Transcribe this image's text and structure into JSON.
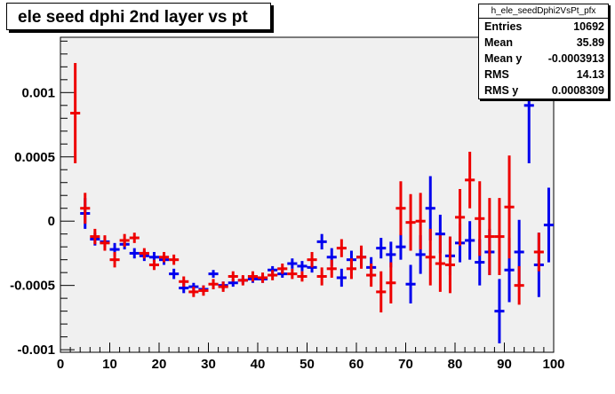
{
  "chart_data": {
    "type": "scatter",
    "title": "ele seed dphi 2nd layer vs pt",
    "xlim": [
      0,
      100
    ],
    "ylim": [
      -0.00102,
      0.00143
    ],
    "x_ticks": [
      "0",
      "10",
      "20",
      "30",
      "40",
      "50",
      "60",
      "70",
      "80",
      "90",
      "100"
    ],
    "y_ticks": [
      {
        "value": 0.001,
        "label": "0.001"
      },
      {
        "value": 0.0005,
        "label": "0.0005"
      },
      {
        "value": 0,
        "label": "0"
      },
      {
        "value": -0.0005,
        "label": "-0.0005"
      },
      {
        "value": -0.001,
        "label": "-0.001"
      }
    ],
    "grid": false,
    "x_bin_half_width": 1,
    "stats": {
      "name": "h_ele_seedDphi2VsPt_pfx",
      "rows": [
        {
          "label": "Entries",
          "value": "10692"
        },
        {
          "label": "Mean",
          "value": "35.89"
        },
        {
          "label": "Mean y",
          "value": "-0.0003913"
        },
        {
          "label": "RMS",
          "value": "14.13"
        },
        {
          "label": "RMS y",
          "value": "0.0008309"
        }
      ]
    },
    "series": [
      {
        "color": "#0000ee",
        "points": [
          {
            "x": 5,
            "y": 6e-05,
            "err": 0.00012
          },
          {
            "x": 7,
            "y": -0.00014,
            "err": 5e-05
          },
          {
            "x": 9,
            "y": -0.00016,
            "err": 4e-05
          },
          {
            "x": 11,
            "y": -0.00022,
            "err": 5e-05
          },
          {
            "x": 13,
            "y": -0.00018,
            "err": 4e-05
          },
          {
            "x": 15,
            "y": -0.00025,
            "err": 4e-05
          },
          {
            "x": 17,
            "y": -0.00027,
            "err": 4e-05
          },
          {
            "x": 19,
            "y": -0.00028,
            "err": 4e-05
          },
          {
            "x": 21,
            "y": -0.0003,
            "err": 4e-05
          },
          {
            "x": 23,
            "y": -0.00041,
            "err": 4e-05
          },
          {
            "x": 25,
            "y": -0.00052,
            "err": 4e-05
          },
          {
            "x": 27,
            "y": -0.00051,
            "err": 3e-05
          },
          {
            "x": 29,
            "y": -0.00053,
            "err": 3e-05
          },
          {
            "x": 31,
            "y": -0.00041,
            "err": 3e-05
          },
          {
            "x": 33,
            "y": -0.0005,
            "err": 3e-05
          },
          {
            "x": 35,
            "y": -0.00048,
            "err": 3e-05
          },
          {
            "x": 37,
            "y": -0.00046,
            "err": 3e-05
          },
          {
            "x": 39,
            "y": -0.00045,
            "err": 3e-05
          },
          {
            "x": 41,
            "y": -0.00045,
            "err": 3e-05
          },
          {
            "x": 43,
            "y": -0.00038,
            "err": 3e-05
          },
          {
            "x": 45,
            "y": -0.00041,
            "err": 3e-05
          },
          {
            "x": 47,
            "y": -0.00033,
            "err": 4e-05
          },
          {
            "x": 49,
            "y": -0.00035,
            "err": 4e-05
          },
          {
            "x": 51,
            "y": -0.00036,
            "err": 4e-05
          },
          {
            "x": 53,
            "y": -0.00016,
            "err": 6e-05
          },
          {
            "x": 55,
            "y": -0.00028,
            "err": 7e-05
          },
          {
            "x": 57,
            "y": -0.00044,
            "err": 7e-05
          },
          {
            "x": 59,
            "y": -0.0003,
            "err": 7e-05
          },
          {
            "x": 61,
            "y": -0.00028,
            "err": 7e-05
          },
          {
            "x": 63,
            "y": -0.00036,
            "err": 8e-05
          },
          {
            "x": 65,
            "y": -0.00021,
            "err": 8e-05
          },
          {
            "x": 67,
            "y": -0.00026,
            "err": 0.0001
          },
          {
            "x": 69,
            "y": -0.0002,
            "err": 0.0001
          },
          {
            "x": 71,
            "y": -0.00049,
            "err": 0.00015
          },
          {
            "x": 73,
            "y": -0.00026,
            "err": 0.00015
          },
          {
            "x": 75,
            "y": 0.0001,
            "err": 0.00025
          },
          {
            "x": 77,
            "y": -0.0001,
            "err": 0.00015
          },
          {
            "x": 79,
            "y": -0.00027,
            "err": 0.00015
          },
          {
            "x": 81,
            "y": -0.00017,
            "err": 0.00015
          },
          {
            "x": 83,
            "y": -0.00015,
            "err": 0.00015
          },
          {
            "x": 85,
            "y": -0.00032,
            "err": 0.00018
          },
          {
            "x": 87,
            "y": -0.00024,
            "err": 0.00018
          },
          {
            "x": 89,
            "y": -0.0007,
            "err": 0.00025
          },
          {
            "x": 91,
            "y": -0.00038,
            "err": 0.00025
          },
          {
            "x": 93,
            "y": -0.00024,
            "err": 0.00025
          },
          {
            "x": 95,
            "y": 0.0009,
            "err": 0.00045
          },
          {
            "x": 97,
            "y": -0.00034,
            "err": 0.00025
          },
          {
            "x": 99,
            "y": -3e-05,
            "err": 0.00029
          }
        ]
      },
      {
        "color": "#ee0000",
        "points": [
          {
            "x": 3,
            "y": 0.00084,
            "err": 0.00039
          },
          {
            "x": 5,
            "y": 0.0001,
            "err": 0.00012
          },
          {
            "x": 7,
            "y": -0.00012,
            "err": 6e-05
          },
          {
            "x": 9,
            "y": -0.00017,
            "err": 6e-05
          },
          {
            "x": 11,
            "y": -0.0003,
            "err": 6e-05
          },
          {
            "x": 13,
            "y": -0.00015,
            "err": 5e-05
          },
          {
            "x": 15,
            "y": -0.00013,
            "err": 4e-05
          },
          {
            "x": 17,
            "y": -0.00025,
            "err": 4e-05
          },
          {
            "x": 19,
            "y": -0.00034,
            "err": 4e-05
          },
          {
            "x": 21,
            "y": -0.00028,
            "err": 4e-05
          },
          {
            "x": 23,
            "y": -0.0003,
            "err": 4e-05
          },
          {
            "x": 25,
            "y": -0.00047,
            "err": 4e-05
          },
          {
            "x": 27,
            "y": -0.00055,
            "err": 4e-05
          },
          {
            "x": 29,
            "y": -0.00054,
            "err": 4e-05
          },
          {
            "x": 31,
            "y": -0.00049,
            "err": 4e-05
          },
          {
            "x": 33,
            "y": -0.00051,
            "err": 4e-05
          },
          {
            "x": 35,
            "y": -0.00043,
            "err": 4e-05
          },
          {
            "x": 37,
            "y": -0.00046,
            "err": 4e-05
          },
          {
            "x": 39,
            "y": -0.00043,
            "err": 4e-05
          },
          {
            "x": 41,
            "y": -0.00044,
            "err": 4e-05
          },
          {
            "x": 43,
            "y": -0.00042,
            "err": 4e-05
          },
          {
            "x": 45,
            "y": -0.00037,
            "err": 4e-05
          },
          {
            "x": 47,
            "y": -0.00041,
            "err": 4e-05
          },
          {
            "x": 49,
            "y": -0.00043,
            "err": 4e-05
          },
          {
            "x": 51,
            "y": -0.0003,
            "err": 6e-05
          },
          {
            "x": 53,
            "y": -0.00043,
            "err": 7e-05
          },
          {
            "x": 55,
            "y": -0.00037,
            "err": 7e-05
          },
          {
            "x": 57,
            "y": -0.00021,
            "err": 7e-05
          },
          {
            "x": 59,
            "y": -0.00037,
            "err": 8e-05
          },
          {
            "x": 61,
            "y": -0.00028,
            "err": 9e-05
          },
          {
            "x": 63,
            "y": -0.00042,
            "err": 9e-05
          },
          {
            "x": 65,
            "y": -0.00055,
            "err": 0.00016
          },
          {
            "x": 67,
            "y": -0.00048,
            "err": 0.00016
          },
          {
            "x": 69,
            "y": 0.0001,
            "err": 0.00021
          },
          {
            "x": 71,
            "y": -1e-05,
            "err": 0.00022
          },
          {
            "x": 73,
            "y": 0,
            "err": 0.00022
          },
          {
            "x": 75,
            "y": -0.00028,
            "err": 0.00022
          },
          {
            "x": 77,
            "y": -0.00033,
            "err": 0.00022
          },
          {
            "x": 79,
            "y": -0.00034,
            "err": 0.00022
          },
          {
            "x": 81,
            "y": 3e-05,
            "err": 0.00022
          },
          {
            "x": 83,
            "y": 0.00032,
            "err": 0.00022
          },
          {
            "x": 85,
            "y": 2e-05,
            "err": 0.00029
          },
          {
            "x": 87,
            "y": -0.00012,
            "err": 0.0003
          },
          {
            "x": 89,
            "y": -0.00012,
            "err": 0.0003
          },
          {
            "x": 91,
            "y": 0.00011,
            "err": 0.0004
          },
          {
            "x": 93,
            "y": -0.0005,
            "err": 0.00015
          },
          {
            "x": 97,
            "y": -0.00024,
            "err": 0.00015
          }
        ]
      }
    ]
  }
}
